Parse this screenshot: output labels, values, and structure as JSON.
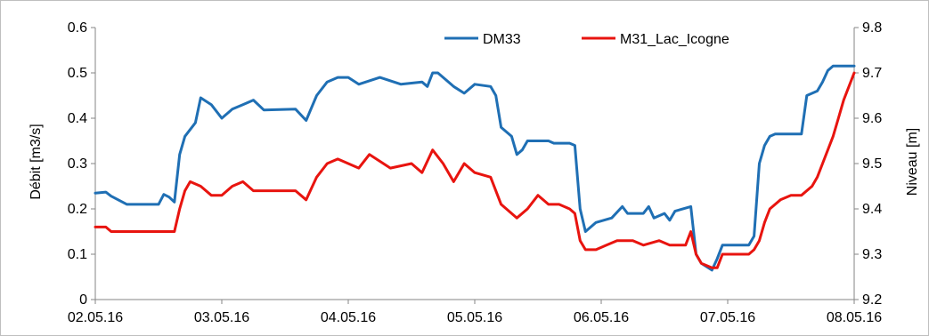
{
  "chart_data": {
    "type": "line",
    "xlabel": "",
    "ylabel": "Débit [m3/s]",
    "y2label": "Niveau [m]",
    "x_ticks": [
      "02.05.16",
      "03.05.16",
      "04.05.16",
      "05.05.16",
      "06.05.16",
      "07.05.16",
      "08.05.16"
    ],
    "xlim": [
      "02.05.16",
      "08.05.16"
    ],
    "ylim": [
      0,
      0.6
    ],
    "y_ticks": [
      "0",
      "0.1",
      "0.2",
      "0.3",
      "0.4",
      "0.5",
      "0.6"
    ],
    "y2lim": [
      9.2,
      9.8
    ],
    "y2_ticks": [
      "9.2",
      "9.3",
      "9.4",
      "9.5",
      "9.6",
      "9.7",
      "9.8"
    ],
    "grid": false,
    "legend_position": "top-right",
    "series": [
      {
        "name": "DM33",
        "axis": "left",
        "color": "#1f6fb4",
        "points": [
          [
            "02.05.16 00:00",
            0.235
          ],
          [
            "02.05.16 02:00",
            0.237
          ],
          [
            "02.05.16 03:00",
            0.228
          ],
          [
            "02.05.16 06:00",
            0.21
          ],
          [
            "02.05.16 12:00",
            0.21
          ],
          [
            "02.05.16 13:00",
            0.232
          ],
          [
            "02.05.16 14:00",
            0.226
          ],
          [
            "02.05.16 15:00",
            0.215
          ],
          [
            "02.05.16 16:00",
            0.32
          ],
          [
            "02.05.16 17:00",
            0.36
          ],
          [
            "02.05.16 19:00",
            0.39
          ],
          [
            "02.05.16 20:00",
            0.445
          ],
          [
            "02.05.16 22:00",
            0.43
          ],
          [
            "03.05.16 00:00",
            0.4
          ],
          [
            "03.05.16 02:00",
            0.42
          ],
          [
            "03.05.16 04:00",
            0.43
          ],
          [
            "03.05.16 06:00",
            0.44
          ],
          [
            "03.05.16 08:00",
            0.418
          ],
          [
            "03.05.16 14:00",
            0.42
          ],
          [
            "03.05.16 16:00",
            0.395
          ],
          [
            "03.05.16 18:00",
            0.45
          ],
          [
            "03.05.16 20:00",
            0.48
          ],
          [
            "03.05.16 22:00",
            0.49
          ],
          [
            "04.05.16 00:00",
            0.49
          ],
          [
            "04.05.16 02:00",
            0.475
          ],
          [
            "04.05.16 06:00",
            0.49
          ],
          [
            "04.05.16 10:00",
            0.475
          ],
          [
            "04.05.16 14:00",
            0.48
          ],
          [
            "04.05.16 15:00",
            0.47
          ],
          [
            "04.05.16 16:00",
            0.5
          ],
          [
            "04.05.16 17:00",
            0.5
          ],
          [
            "04.05.16 20:00",
            0.47
          ],
          [
            "04.05.16 22:00",
            0.455
          ],
          [
            "05.05.16 00:00",
            0.475
          ],
          [
            "05.05.16 03:00",
            0.47
          ],
          [
            "05.05.16 04:00",
            0.45
          ],
          [
            "05.05.16 05:00",
            0.38
          ],
          [
            "05.05.16 07:00",
            0.36
          ],
          [
            "05.05.16 08:00",
            0.32
          ],
          [
            "05.05.16 09:00",
            0.33
          ],
          [
            "05.05.16 10:00",
            0.35
          ],
          [
            "05.05.16 14:00",
            0.35
          ],
          [
            "05.05.16 15:00",
            0.345
          ],
          [
            "05.05.16 18:00",
            0.345
          ],
          [
            "05.05.16 19:00",
            0.34
          ],
          [
            "05.05.16 20:00",
            0.2
          ],
          [
            "05.05.16 21:00",
            0.15
          ],
          [
            "05.05.16 23:00",
            0.17
          ],
          [
            "06.05.16 02:00",
            0.18
          ],
          [
            "06.05.16 04:00",
            0.205
          ],
          [
            "06.05.16 05:00",
            0.19
          ],
          [
            "06.05.16 08:00",
            0.19
          ],
          [
            "06.05.16 09:00",
            0.205
          ],
          [
            "06.05.16 10:00",
            0.18
          ],
          [
            "06.05.16 12:00",
            0.19
          ],
          [
            "06.05.16 13:00",
            0.175
          ],
          [
            "06.05.16 14:00",
            0.195
          ],
          [
            "06.05.16 17:00",
            0.205
          ],
          [
            "06.05.16 18:00",
            0.1
          ],
          [
            "06.05.16 19:00",
            0.08
          ],
          [
            "06.05.16 21:00",
            0.065
          ],
          [
            "06.05.16 22:00",
            0.09
          ],
          [
            "06.05.16 23:00",
            0.12
          ],
          [
            "07.05.16 04:00",
            0.12
          ],
          [
            "07.05.16 05:00",
            0.14
          ],
          [
            "07.05.16 06:00",
            0.3
          ],
          [
            "07.05.16 07:00",
            0.34
          ],
          [
            "07.05.16 08:00",
            0.36
          ],
          [
            "07.05.16 09:00",
            0.365
          ],
          [
            "07.05.16 14:00",
            0.365
          ],
          [
            "07.05.16 15:00",
            0.45
          ],
          [
            "07.05.16 17:00",
            0.46
          ],
          [
            "07.05.16 18:00",
            0.48
          ],
          [
            "07.05.16 19:00",
            0.505
          ],
          [
            "07.05.16 20:00",
            0.515
          ],
          [
            "08.05.16 00:00",
            0.515
          ]
        ]
      },
      {
        "name": "M31_Lac_Icogne",
        "axis": "right",
        "color": "#e8140f",
        "points": [
          [
            "02.05.16 00:00",
            9.36
          ],
          [
            "02.05.16 02:00",
            9.36
          ],
          [
            "02.05.16 03:00",
            9.35
          ],
          [
            "02.05.16 15:00",
            9.35
          ],
          [
            "02.05.16 16:00",
            9.4
          ],
          [
            "02.05.16 17:00",
            9.44
          ],
          [
            "02.05.16 18:00",
            9.46
          ],
          [
            "02.05.16 20:00",
            9.45
          ],
          [
            "02.05.16 22:00",
            9.43
          ],
          [
            "03.05.16 00:00",
            9.43
          ],
          [
            "03.05.16 02:00",
            9.45
          ],
          [
            "03.05.16 04:00",
            9.46
          ],
          [
            "03.05.16 06:00",
            9.44
          ],
          [
            "03.05.16 14:00",
            9.44
          ],
          [
            "03.05.16 16:00",
            9.42
          ],
          [
            "03.05.16 18:00",
            9.47
          ],
          [
            "03.05.16 20:00",
            9.5
          ],
          [
            "03.05.16 22:00",
            9.51
          ],
          [
            "04.05.16 00:00",
            9.5
          ],
          [
            "04.05.16 02:00",
            9.49
          ],
          [
            "04.05.16 04:00",
            9.52
          ],
          [
            "04.05.16 08:00",
            9.49
          ],
          [
            "04.05.16 12:00",
            9.5
          ],
          [
            "04.05.16 14:00",
            9.48
          ],
          [
            "04.05.16 16:00",
            9.53
          ],
          [
            "04.05.16 18:00",
            9.5
          ],
          [
            "04.05.16 20:00",
            9.46
          ],
          [
            "04.05.16 22:00",
            9.5
          ],
          [
            "05.05.16 00:00",
            9.48
          ],
          [
            "05.05.16 03:00",
            9.47
          ],
          [
            "05.05.16 05:00",
            9.41
          ],
          [
            "05.05.16 07:00",
            9.39
          ],
          [
            "05.05.16 08:00",
            9.38
          ],
          [
            "05.05.16 10:00",
            9.4
          ],
          [
            "05.05.16 12:00",
            9.43
          ],
          [
            "05.05.16 14:00",
            9.41
          ],
          [
            "05.05.16 16:00",
            9.41
          ],
          [
            "05.05.16 18:00",
            9.4
          ],
          [
            "05.05.16 19:00",
            9.39
          ],
          [
            "05.05.16 20:00",
            9.33
          ],
          [
            "05.05.16 21:00",
            9.31
          ],
          [
            "05.05.16 23:00",
            9.31
          ],
          [
            "06.05.16 01:00",
            9.32
          ],
          [
            "06.05.16 03:00",
            9.33
          ],
          [
            "06.05.16 06:00",
            9.33
          ],
          [
            "06.05.16 08:00",
            9.32
          ],
          [
            "06.05.16 11:00",
            9.33
          ],
          [
            "06.05.16 13:00",
            9.32
          ],
          [
            "06.05.16 16:00",
            9.32
          ],
          [
            "06.05.16 17:00",
            9.35
          ],
          [
            "06.05.16 18:00",
            9.3
          ],
          [
            "06.05.16 19:00",
            9.28
          ],
          [
            "06.05.16 21:00",
            9.27
          ],
          [
            "06.05.16 22:00",
            9.27
          ],
          [
            "06.05.16 23:00",
            9.3
          ],
          [
            "07.05.16 01:00",
            9.3
          ],
          [
            "07.05.16 04:00",
            9.3
          ],
          [
            "07.05.16 05:00",
            9.31
          ],
          [
            "07.05.16 06:00",
            9.33
          ],
          [
            "07.05.16 07:00",
            9.37
          ],
          [
            "07.05.16 08:00",
            9.4
          ],
          [
            "07.05.16 10:00",
            9.42
          ],
          [
            "07.05.16 12:00",
            9.43
          ],
          [
            "07.05.16 14:00",
            9.43
          ],
          [
            "07.05.16 16:00",
            9.45
          ],
          [
            "07.05.16 17:00",
            9.47
          ],
          [
            "07.05.16 18:00",
            9.5
          ],
          [
            "07.05.16 20:00",
            9.56
          ],
          [
            "07.05.16 21:00",
            9.6
          ],
          [
            "07.05.16 22:00",
            9.64
          ],
          [
            "08.05.16 00:00",
            9.7
          ]
        ]
      }
    ]
  }
}
